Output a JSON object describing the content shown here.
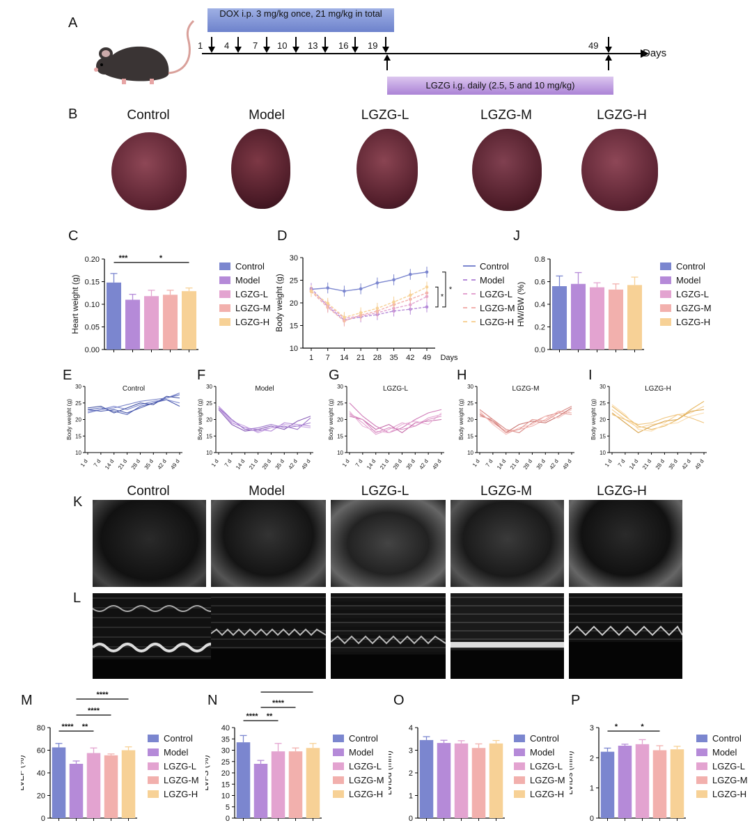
{
  "colors": {
    "control": "#7b86cf",
    "model": "#b58ad8",
    "lgzg_l": "#e3a3d0",
    "lgzg_m": "#f2b0ad",
    "lgzg_h": "#f7d196"
  },
  "groups": [
    "Control",
    "Model",
    "LGZG-L",
    "LGZG-M",
    "LGZG-H"
  ],
  "panel_letters": {
    "A": "A",
    "B": "B",
    "C": "C",
    "D": "D",
    "J": "J",
    "E": "E",
    "F": "F",
    "G": "G",
    "H": "H",
    "I": "I",
    "K": "K",
    "L": "L",
    "M": "M",
    "N": "N",
    "O": "O",
    "P": "P"
  },
  "timeline": {
    "dox_text": "DOX i.p. 3 mg/kg once, 21 mg/kg in total",
    "lgzg_text": "LGZG i.g. daily (2.5, 5 and 10 mg/kg)",
    "days": [
      "1",
      "4",
      "7",
      "10",
      "13",
      "16",
      "19",
      "49"
    ],
    "axis_label": "Days"
  },
  "legend_small": [
    "Control",
    "Model",
    "LGZG-L",
    "LGZG-M",
    "LGZG-H"
  ],
  "chart_data": [
    {
      "panel": "C",
      "type": "bar",
      "categories": [
        "Control",
        "Model",
        "LGZG-L",
        "LGZG-M",
        "LGZG-H"
      ],
      "values": [
        0.148,
        0.11,
        0.118,
        0.121,
        0.129
      ],
      "errors": [
        0.02,
        0.012,
        0.013,
        0.01,
        0.007
      ],
      "ylabel": "Heart weight (g)",
      "ylim": [
        0,
        0.2
      ],
      "yticks": [
        "0.00",
        "0.05",
        "0.10",
        "0.15",
        "0.20"
      ],
      "sig": [
        "***",
        "*"
      ]
    },
    {
      "panel": "D",
      "type": "line",
      "x": [
        1,
        7,
        14,
        21,
        28,
        35,
        42,
        49
      ],
      "xlabel": "Days",
      "ylabel": "Body weight (g)",
      "ylim": [
        10,
        30
      ],
      "yticks": [
        "10",
        "15",
        "20",
        "25",
        "30"
      ],
      "series": [
        {
          "name": "Control",
          "values": [
            23.0,
            23.3,
            22.6,
            23.1,
            24.4,
            25.1,
            26.3,
            26.8
          ]
        },
        {
          "name": "Model",
          "values": [
            23.2,
            19.2,
            16.2,
            16.9,
            17.4,
            18.2,
            18.6,
            19.1
          ]
        },
        {
          "name": "LGZG-L",
          "values": [
            22.7,
            19.5,
            16.6,
            17.1,
            17.8,
            18.8,
            19.6,
            21.4
          ]
        },
        {
          "name": "LGZG-M",
          "values": [
            22.5,
            19.0,
            16.0,
            17.3,
            18.2,
            19.6,
            20.8,
            22.2
          ]
        },
        {
          "name": "LGZG-H",
          "values": [
            22.6,
            19.9,
            16.8,
            17.8,
            18.8,
            20.2,
            21.7,
            23.5
          ]
        }
      ],
      "sig": [
        "*",
        "*"
      ]
    },
    {
      "panel": "J",
      "type": "bar",
      "categories": [
        "Control",
        "Model",
        "LGZG-L",
        "LGZG-M",
        "LGZG-H"
      ],
      "values": [
        0.56,
        0.58,
        0.55,
        0.53,
        0.57
      ],
      "errors": [
        0.09,
        0.1,
        0.04,
        0.05,
        0.07
      ],
      "ylabel": "HW/BW (%)",
      "ylim": [
        0,
        0.8
      ],
      "yticks": [
        "0.0",
        "0.2",
        "0.4",
        "0.6",
        "0.8"
      ]
    },
    {
      "panel": "E",
      "type": "line",
      "title": "Control",
      "ylabel": "Body weight (g)",
      "ylim": [
        10,
        30
      ],
      "xticklabels": [
        "1 d",
        "7 d",
        "14 d",
        "21 d",
        "28 d",
        "35 d",
        "42 d",
        "49 d"
      ],
      "yticks": [
        "10",
        "15",
        "20",
        "25",
        "30"
      ],
      "series": [
        {
          "values": [
            23,
            23.5,
            22.5,
            21.5,
            24,
            25,
            26.5,
            27.5
          ]
        },
        {
          "values": [
            22.5,
            23,
            24,
            23,
            24.5,
            25.5,
            26,
            25
          ]
        },
        {
          "values": [
            23.5,
            24,
            22,
            23.5,
            25,
            24.5,
            27,
            26.5
          ]
        },
        {
          "values": [
            22,
            23,
            23.5,
            24.5,
            25.5,
            26,
            26.5,
            28
          ]
        },
        {
          "values": [
            23,
            22.5,
            23,
            22,
            23.5,
            25,
            26,
            24
          ]
        }
      ]
    },
    {
      "panel": "F",
      "type": "line",
      "title": "Model",
      "ylabel": "Body weight (g)",
      "ylim": [
        10,
        30
      ],
      "xticklabels": [
        "1 d",
        "7 d",
        "14 d",
        "21 d",
        "28 d",
        "35 d",
        "42 d",
        "49 d"
      ],
      "yticks": [
        "10",
        "15",
        "20",
        "25",
        "30"
      ],
      "series": [
        {
          "values": [
            24,
            20,
            17,
            16.5,
            17.5,
            18,
            17,
            20.5
          ]
        },
        {
          "values": [
            23.5,
            19,
            17.5,
            17,
            16.5,
            19,
            18.5,
            18
          ]
        },
        {
          "values": [
            23,
            18.5,
            16.5,
            17,
            18,
            17,
            19.5,
            21
          ]
        },
        {
          "values": [
            24,
            19.5,
            18,
            16,
            17.5,
            18.5,
            18,
            17.5
          ]
        },
        {
          "values": [
            23.5,
            20,
            17,
            17.5,
            18.5,
            17.5,
            18,
            19
          ]
        }
      ]
    },
    {
      "panel": "G",
      "type": "line",
      "title": "LGZG-L",
      "ylabel": "Body weight (g)",
      "ylim": [
        10,
        30
      ],
      "xticklabels": [
        "1 d",
        "7 d",
        "14 d",
        "21 d",
        "28 d",
        "35 d",
        "42 d",
        "49 d"
      ],
      "yticks": [
        "10",
        "15",
        "20",
        "25",
        "30"
      ],
      "series": [
        {
          "values": [
            25,
            21,
            18,
            16,
            17.5,
            20,
            22,
            23
          ]
        },
        {
          "values": [
            22,
            19,
            15.5,
            17,
            19,
            18,
            20.5,
            21.5
          ]
        },
        {
          "values": [
            21,
            20,
            17,
            18.5,
            16,
            19,
            19.5,
            20
          ]
        },
        {
          "values": [
            22.5,
            18,
            16.5,
            16,
            18.5,
            19.5,
            18.5,
            22
          ]
        },
        {
          "values": [
            21.5,
            20,
            16,
            17.5,
            17,
            18,
            20,
            21
          ]
        }
      ]
    },
    {
      "panel": "H",
      "type": "line",
      "title": "LGZG-M",
      "ylabel": "Body weight (g)",
      "ylim": [
        10,
        30
      ],
      "xticklabels": [
        "1 d",
        "7 d",
        "14 d",
        "21 d",
        "28 d",
        "35 d",
        "42 d",
        "49 d"
      ],
      "yticks": [
        "10",
        "15",
        "20",
        "25",
        "30"
      ],
      "series": [
        {
          "values": [
            23,
            20,
            17,
            16,
            19,
            21,
            22,
            24
          ]
        },
        {
          "values": [
            22,
            19,
            16.5,
            17,
            18,
            20,
            22.5,
            22
          ]
        },
        {
          "values": [
            21.5,
            19.5,
            16,
            18.5,
            19.5,
            19,
            21,
            23.5
          ]
        },
        {
          "values": [
            22.5,
            18.5,
            15.5,
            17.5,
            18.5,
            21,
            20.5,
            23
          ]
        },
        {
          "values": [
            21,
            20,
            16,
            17,
            20,
            19.5,
            22,
            21.5
          ]
        }
      ]
    },
    {
      "panel": "I",
      "type": "line",
      "title": "LGZG-H",
      "ylabel": "Body weight (g)",
      "ylim": [
        10,
        30
      ],
      "xticklabels": [
        "1 d",
        "7 d",
        "14 d",
        "21 d",
        "28 d",
        "35 d",
        "42 d",
        "49 d"
      ],
      "yticks": [
        "10",
        "15",
        "20",
        "25",
        "30"
      ],
      "series": [
        {
          "values": [
            24,
            21,
            18,
            17,
            18,
            20,
            23,
            25.5
          ]
        },
        {
          "values": [
            23,
            20,
            17.5,
            18.5,
            19,
            21.5,
            22,
            24
          ]
        },
        {
          "values": [
            22,
            19,
            16,
            18,
            19.5,
            20,
            22.5,
            23
          ]
        },
        {
          "values": [
            24.5,
            21.5,
            17,
            16.5,
            18.5,
            19,
            21,
            22
          ]
        },
        {
          "values": [
            21.5,
            20,
            18.5,
            19,
            20.5,
            21.5,
            20.5,
            19
          ]
        }
      ]
    },
    {
      "panel": "M",
      "type": "bar",
      "categories": [
        "Control",
        "Model",
        "LGZG-L",
        "LGZG-M",
        "LGZG-H"
      ],
      "values": [
        62.5,
        48,
        57.5,
        55.5,
        60
      ],
      "errors": [
        3.5,
        2.5,
        4.5,
        1.2,
        3
      ],
      "ylabel": "LVEF (%)",
      "ylim": [
        0,
        80
      ],
      "yticks": [
        "0",
        "20",
        "40",
        "60",
        "80"
      ],
      "sig": [
        "****",
        "**",
        "****",
        "****"
      ]
    },
    {
      "panel": "N",
      "type": "bar",
      "categories": [
        "Control",
        "Model",
        "LGZG-L",
        "LGZG-M",
        "LGZG-H"
      ],
      "values": [
        33.5,
        24,
        29.5,
        29.5,
        31
      ],
      "errors": [
        3,
        1.5,
        3.5,
        1.5,
        2
      ],
      "ylabel": "LVFS (%)",
      "ylim": [
        0,
        40
      ],
      "yticks": [
        "0",
        "5",
        "10",
        "15",
        "20",
        "25",
        "30",
        "35",
        "40"
      ],
      "sig": [
        "****",
        "**",
        "****",
        "****"
      ]
    },
    {
      "panel": "O",
      "type": "bar",
      "categories": [
        "Control",
        "Model",
        "LGZG-L",
        "LGZG-M",
        "LGZG-H"
      ],
      "values": [
        3.45,
        3.32,
        3.3,
        3.1,
        3.3
      ],
      "errors": [
        0.15,
        0.12,
        0.12,
        0.18,
        0.13
      ],
      "ylabel": "LVIDd (mm)",
      "ylim": [
        0,
        4
      ],
      "yticks": [
        "0",
        "1",
        "2",
        "3",
        "4"
      ]
    },
    {
      "panel": "P",
      "type": "bar",
      "categories": [
        "Control",
        "Model",
        "LGZG-L",
        "LGZG-M",
        "LGZG-H"
      ],
      "values": [
        2.2,
        2.4,
        2.45,
        2.25,
        2.28
      ],
      "errors": [
        0.12,
        0.05,
        0.15,
        0.15,
        0.1
      ],
      "ylabel": "LVIDs (mm)",
      "ylim": [
        0,
        3
      ],
      "yticks": [
        "0",
        "1",
        "2",
        "3"
      ],
      "sig": [
        "*",
        "*"
      ]
    }
  ]
}
